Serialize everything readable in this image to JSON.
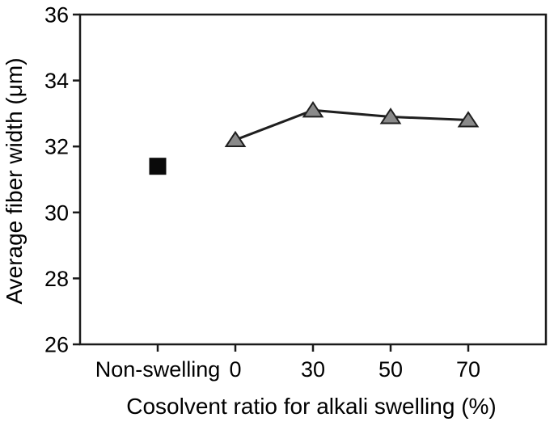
{
  "chart_data": {
    "type": "line",
    "title": "",
    "xlabel": "Cosolvent ratio for alkali swelling (%)",
    "ylabel": "Average fiber width (μm)",
    "categories": [
      "Non-swelling",
      "0",
      "30",
      "50",
      "70"
    ],
    "ylim": [
      26,
      36
    ],
    "yticks": [
      "36",
      "34",
      "32",
      "30",
      "28",
      "26"
    ],
    "grid": false,
    "legend": "none",
    "frame": true,
    "axis_color": "#1a1a1a",
    "text_color": "#000000",
    "background": "#ffffff",
    "series": [
      {
        "marker": "square",
        "marker_fill": "#0a0a0a",
        "marker_stroke": "#0a0a0a",
        "connect_line": false,
        "points": [
          {
            "category": "Non-swelling",
            "value": 31.4
          }
        ]
      },
      {
        "marker": "triangle",
        "marker_fill": "#8a8a8a",
        "marker_stroke": "#1f1f1f",
        "connect_line": true,
        "line_color": "#1f1f1f",
        "points": [
          {
            "category": "0",
            "value": 32.2
          },
          {
            "category": "30",
            "value": 33.1
          },
          {
            "category": "50",
            "value": 32.9
          },
          {
            "category": "70",
            "value": 32.8
          }
        ]
      }
    ]
  }
}
